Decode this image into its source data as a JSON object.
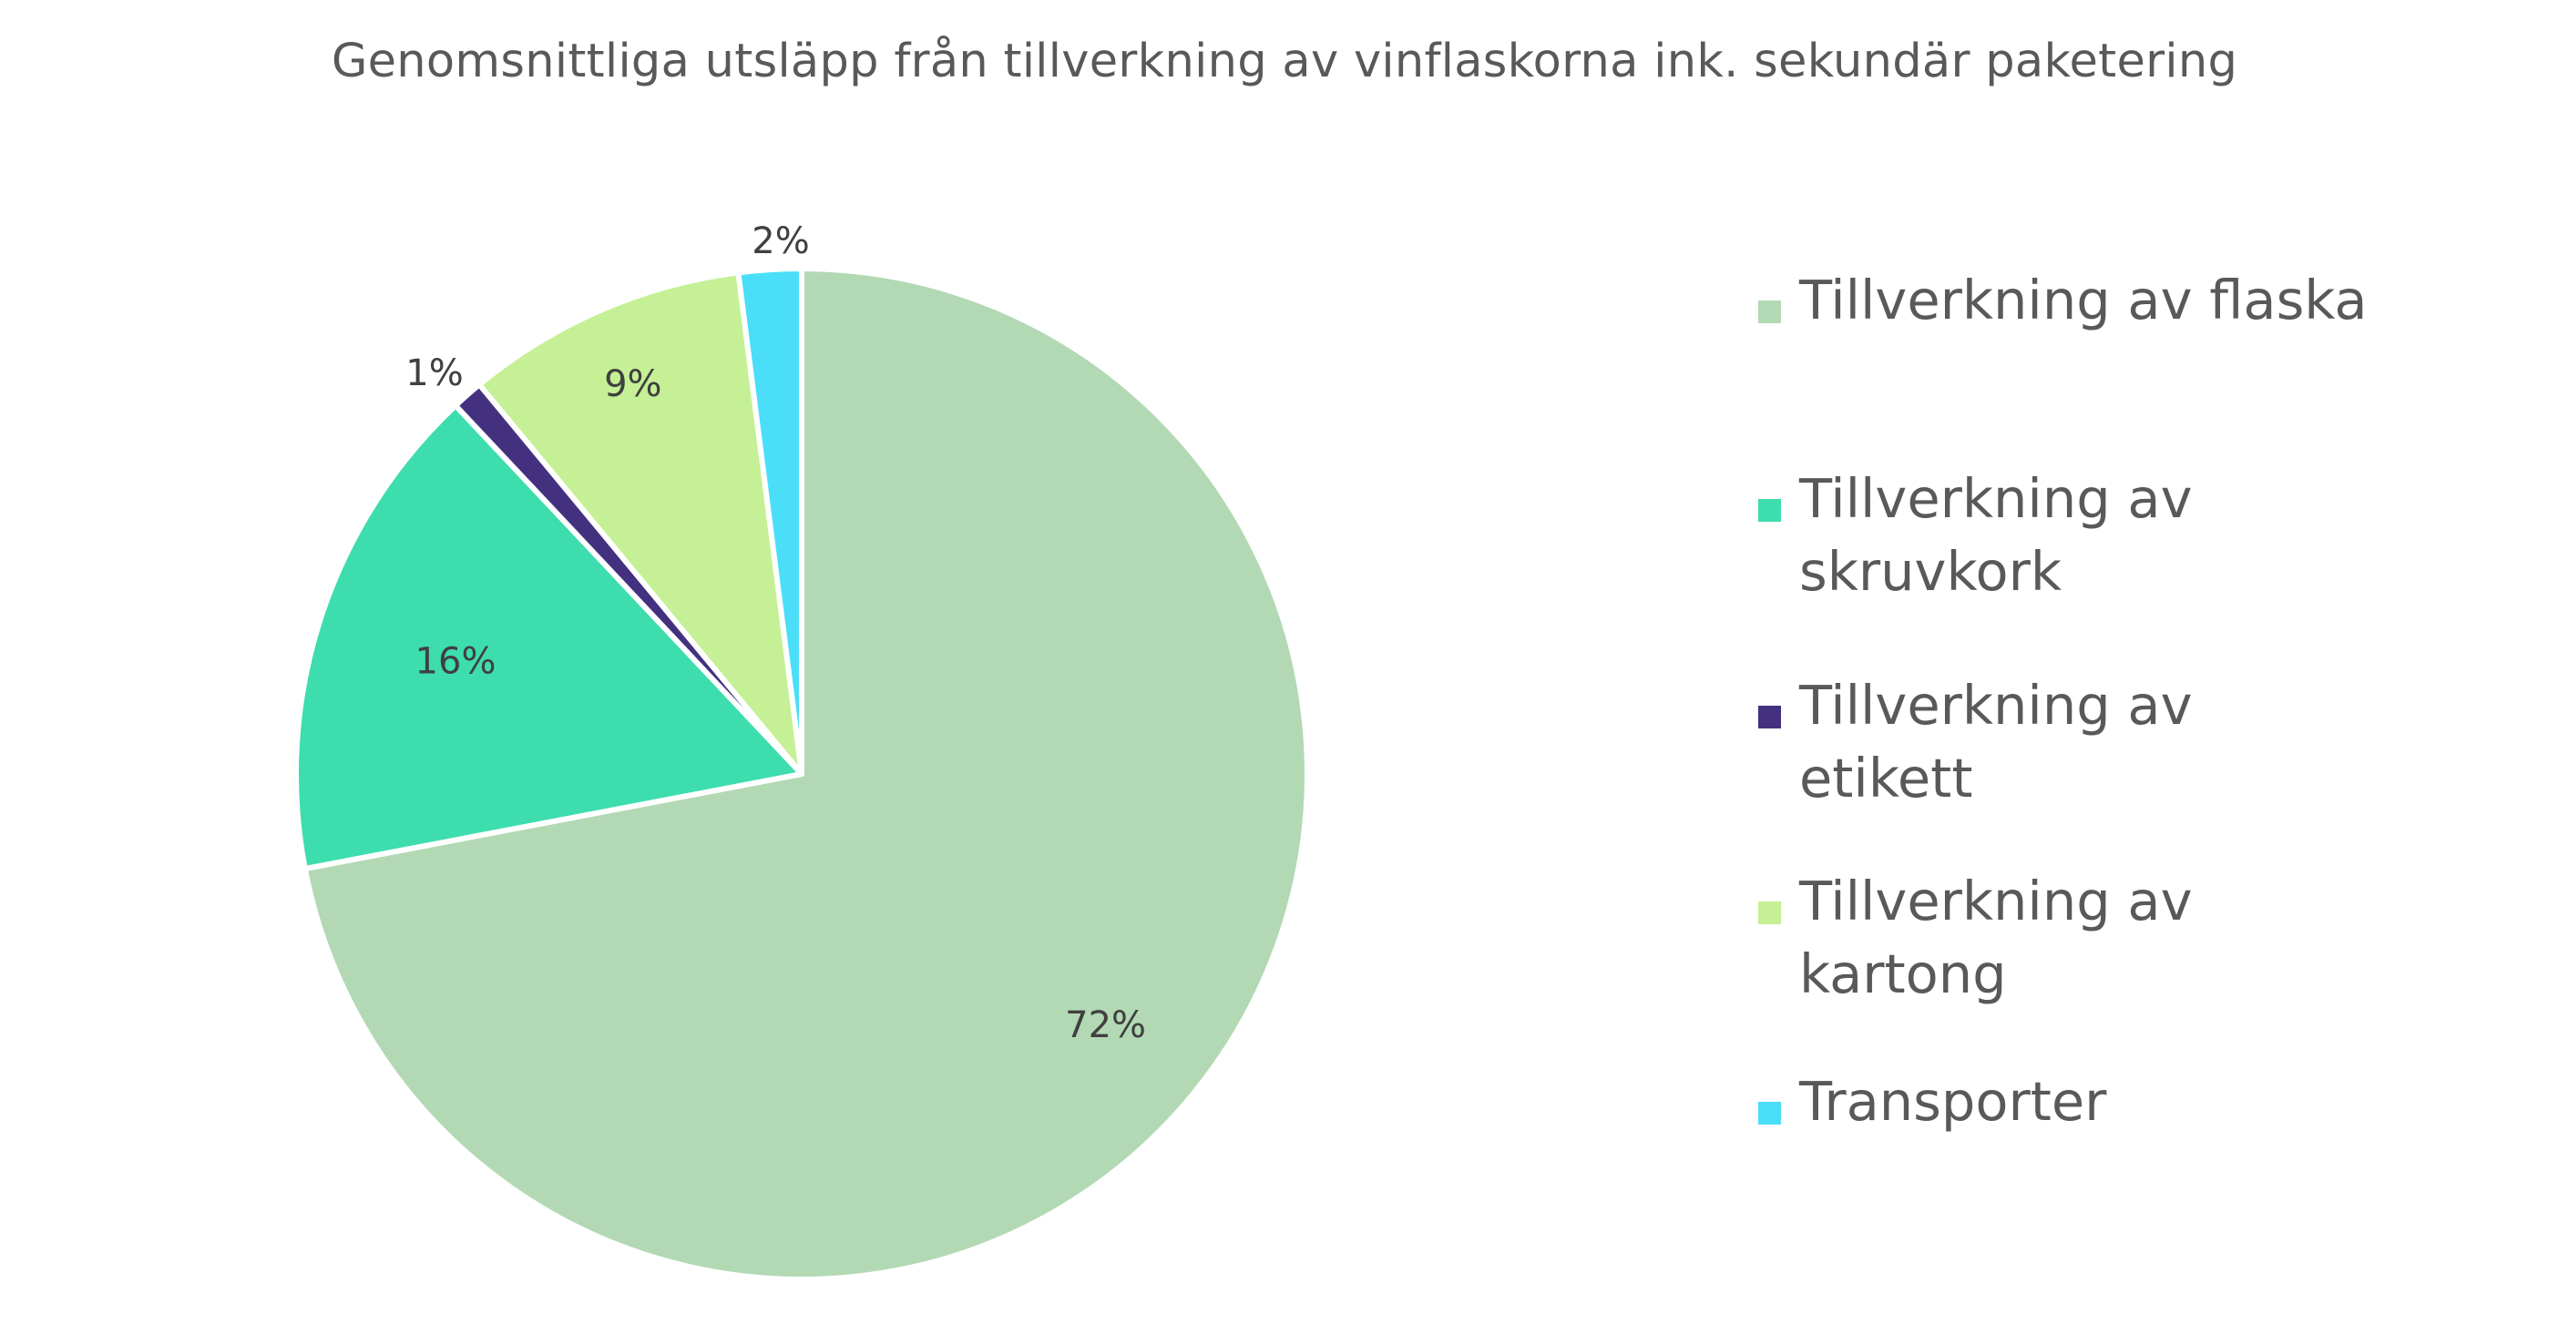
{
  "chart_data": {
    "type": "pie",
    "title": "Genomsnittliga utsläpp från tillverkning av vinflaskorna ink. sekundär paketering",
    "categories": [
      "Tillverkning av flaska",
      "Tillverkning av skruvkork",
      "Tillverkning av etikett",
      "Tillverkning av kartong",
      "Transporter"
    ],
    "values": [
      72,
      16,
      1,
      9,
      2
    ],
    "data_labels": [
      "72%",
      "16%",
      "1%",
      "9%",
      "2%"
    ],
    "colors": [
      "#B2D9B4",
      "#3DDDAE",
      "#433180",
      "#C5F096",
      "#4BDEF8"
    ],
    "legend_position": "right",
    "start_angle": "12 o'clock",
    "direction": "clockwise"
  }
}
